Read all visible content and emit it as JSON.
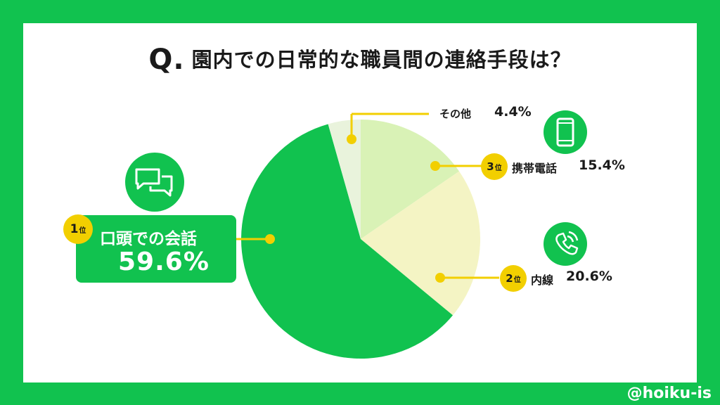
{
  "title": {
    "q": "Q.",
    "text": "園内での日常的な職員間の連絡手段は？"
  },
  "chart_data": {
    "type": "pie",
    "slices": [
      {
        "label": "その他",
        "value": 4.4,
        "display": "4.4%",
        "color": "#e9f3dc"
      },
      {
        "label": "携帯電話",
        "value": 15.4,
        "display": "15.4%",
        "rank": "3",
        "color": "#d9f2b6"
      },
      {
        "label": "内線",
        "value": 20.6,
        "display": "20.6%",
        "rank": "2",
        "color": "#f4f4c4"
      },
      {
        "label": "口頭での会話",
        "value": 59.6,
        "display": "59.6%",
        "rank": "1",
        "color": "#11c24f"
      }
    ],
    "rank_suffix": "位"
  },
  "icons": [
    "speech-bubbles-icon",
    "mobile-phone-icon",
    "phone-handset-icon"
  ],
  "handle": "@hoiku-is"
}
